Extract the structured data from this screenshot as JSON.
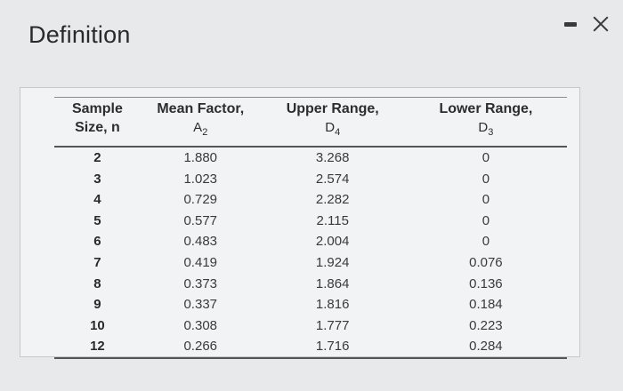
{
  "window": {
    "title": "Definition",
    "minimize_icon": "minimize-icon",
    "close_icon": "close-icon"
  },
  "table": {
    "headers": [
      {
        "line1": "Sample",
        "line2": "Size, n",
        "symbol": "",
        "sub": ""
      },
      {
        "line1": "Mean Factor,",
        "line2": "",
        "symbol": "A",
        "sub": "2"
      },
      {
        "line1": "Upper Range,",
        "line2": "",
        "symbol": "D",
        "sub": "4"
      },
      {
        "line1": "Lower Range,",
        "line2": "",
        "symbol": "D",
        "sub": "3"
      }
    ],
    "rows": [
      [
        "2",
        "1.880",
        "3.268",
        "0"
      ],
      [
        "3",
        "1.023",
        "2.574",
        "0"
      ],
      [
        "4",
        "0.729",
        "2.282",
        "0"
      ],
      [
        "5",
        "0.577",
        "2.115",
        "0"
      ],
      [
        "6",
        "0.483",
        "2.004",
        "0"
      ],
      [
        "7",
        "0.419",
        "1.924",
        "0.076"
      ],
      [
        "8",
        "0.373",
        "1.864",
        "0.136"
      ],
      [
        "9",
        "0.337",
        "1.816",
        "0.184"
      ],
      [
        "10",
        "0.308",
        "1.777",
        "0.223"
      ],
      [
        "12",
        "0.266",
        "1.716",
        "0.284"
      ]
    ]
  }
}
